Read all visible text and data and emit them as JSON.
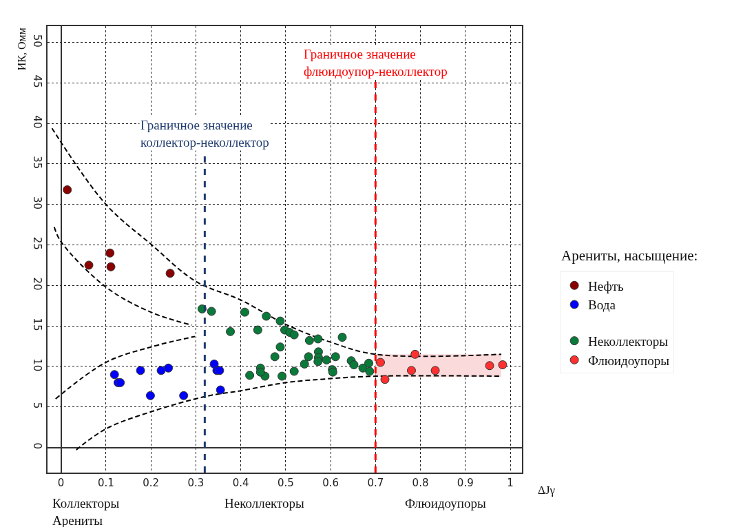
{
  "chart_data": {
    "type": "scatter",
    "xlabel": "ΔJγ",
    "ylabel": "ИК, Омм",
    "legend_title": "Арениты, насыщение:",
    "xlim": [
      -0.03,
      1.026
    ],
    "ylim": [
      -3.1,
      52
    ],
    "xticks": [
      0,
      0.1,
      0.2,
      0.3,
      0.4,
      0.5,
      0.6,
      0.7,
      0.8,
      0.9,
      1
    ],
    "yticks": [
      0,
      5,
      10,
      15,
      20,
      25,
      30,
      35,
      40,
      45,
      50
    ],
    "grid": true,
    "legend": "right",
    "series": [
      {
        "name": "Нефть",
        "color": "#8b0000",
        "x": [
          0.014,
          0.062,
          0.109,
          0.111,
          0.243
        ],
        "values": [
          31.8,
          22.5,
          24.0,
          22.3,
          21.5
        ],
        "marker": "circle"
      },
      {
        "name": "Вода",
        "color": "#0000ff",
        "x": [
          0.119,
          0.127,
          0.132,
          0.177,
          0.199,
          0.223,
          0.239,
          0.273,
          0.341,
          0.347,
          0.353,
          0.355
        ],
        "values": [
          9.0,
          8.0,
          8.0,
          9.5,
          6.4,
          9.5,
          9.8,
          6.4,
          10.3,
          9.5,
          9.5,
          7.1
        ],
        "marker": "circle"
      },
      {
        "name": "Неколлекторы",
        "color": "#0a7a3a",
        "x": [
          0.314,
          0.335,
          0.409,
          0.457,
          0.488,
          0.377,
          0.438,
          0.498,
          0.509,
          0.519,
          0.553,
          0.572,
          0.626,
          0.488,
          0.476,
          0.551,
          0.573,
          0.573,
          0.572,
          0.591,
          0.611,
          0.542,
          0.646,
          0.652,
          0.672,
          0.685,
          0.687,
          0.604,
          0.605,
          0.519,
          0.492,
          0.454,
          0.444,
          0.444,
          0.42
        ],
        "values": [
          17.1,
          16.8,
          16.7,
          16.2,
          15.6,
          14.3,
          14.5,
          14.5,
          14.2,
          13.9,
          13.2,
          13.4,
          13.6,
          12.4,
          11.2,
          11.2,
          11.8,
          11.1,
          10.6,
          10.8,
          11.2,
          10.3,
          10.7,
          10.2,
          9.8,
          10.4,
          9.4,
          9.6,
          9.3,
          9.4,
          8.8,
          8.8,
          9.8,
          9.3,
          8.9
        ],
        "marker": "circle"
      },
      {
        "name": "Флюидоупоры",
        "color": "#ff3030",
        "x": [
          0.711,
          0.721,
          0.788,
          0.78,
          0.833,
          0.954,
          0.983
        ],
        "values": [
          10.5,
          8.4,
          11.5,
          9.5,
          9.5,
          10.1,
          10.2
        ],
        "marker": "circle"
      },
      {
        "type": "line",
        "line_style": "dashed",
        "color": "#000000",
        "x": [
          -0.02,
          0.1,
          0.2,
          0.3,
          0.4,
          0.5,
          0.6,
          0.7,
          0.98
        ],
        "values": [
          39.4,
          30.0,
          25.1,
          20.5,
          18.2,
          15.2,
          13.0,
          11.5,
          11.5
        ]
      },
      {
        "type": "line",
        "line_style": "dashed",
        "color": "#000000",
        "x": [
          -0.015,
          0.0,
          0.1,
          0.2,
          0.291
        ],
        "values": [
          27.2,
          25.4,
          19.8,
          16.7,
          15.1
        ]
      },
      {
        "type": "line",
        "line_style": "dashed",
        "color": "#000000",
        "x": [
          -0.012,
          0.1,
          0.2,
          0.298
        ],
        "values": [
          6.0,
          10.5,
          12.4,
          13.7
        ]
      },
      {
        "type": "line",
        "line_style": "dashed",
        "color": "#000000",
        "x": [
          0.034,
          0.1,
          0.2,
          0.322,
          0.4,
          0.5,
          0.6,
          0.7,
          0.98
        ],
        "values": [
          -0.3,
          2.3,
          4.4,
          6.3,
          7.0,
          8.0,
          8.5,
          8.8,
          8.8
        ]
      },
      {
        "type": "line",
        "color": "#fadada",
        "x": [
          0.7,
          0.98
        ],
        "values": [
          8.8,
          8.8
        ],
        "lower": [
          8.8,
          8.8
        ],
        "upper": [
          11.5,
          11.5
        ]
      }
    ],
    "ref_lines": [
      {
        "axis": "x",
        "value": 0.32,
        "label": "Граничное значение\nколлектор-неколлектор",
        "color": "#1f3a6e",
        "line_style": "dashed"
      },
      {
        "axis": "x",
        "value": 0.7,
        "label": "Граничное значение\nфлюидоупор-неколлектор",
        "color": "#ff0000",
        "line_style": "dashed"
      }
    ],
    "annotations": [
      "Коллекторы\nАрениты",
      "Неколлекторы",
      "Флюидоупоры"
    ]
  }
}
